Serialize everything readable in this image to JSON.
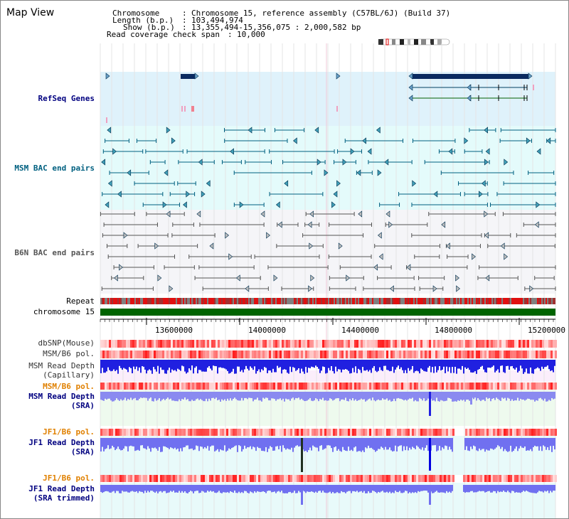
{
  "window": {
    "title": "Map View"
  },
  "header": {
    "chromosome_label": "Chromosome",
    "chromosome_value": "Chromosome 15, reference assembly (C57BL/6J) (Build 37)",
    "length_label": "Length (b.p.)",
    "length_value": "103,494,974",
    "show_label": "Show (b.p.)",
    "show_value": "13,355,494-15,356,075 : 2,000,582 bp",
    "span_label": "Read coverage check span",
    "span_value": "10,000"
  },
  "tracks": {
    "refseq": "RefSeq Genes",
    "msm_bac": "MSM BAC end pairs",
    "b6n_bac": "B6N BAC end pairs",
    "repeat": "Repeat",
    "chromosome": "chromosome 15",
    "dbsnp": "dbSNP(Mouse)",
    "msm_b6_pol": "MSM/B6 pol.",
    "msm_depth_cap_1": "MSM Read Depth",
    "msm_depth_cap_2": "(Capillary)",
    "msm_b6_pol2": "MSM/B6 pol.",
    "msm_depth_sra_1": "MSM Read Depth",
    "msm_depth_sra_2": "(SRA)",
    "jf1_pol": "JF1/B6 pol.",
    "jf1_depth_sra_1": "JF1 Read Depth",
    "jf1_depth_sra_2": "(SRA)",
    "jf1_pol2": "JF1/B6 pol.",
    "jf1_depth_trim_1": "JF1 Read Depth",
    "jf1_depth_trim_2": "(SRA trimmed)"
  },
  "axis": {
    "ticks": [
      "13600000",
      "14000000",
      "14400000",
      "14800000",
      "15200000"
    ]
  },
  "colors": {
    "refseq_label": "#000080",
    "msm_bac_label": "#006080",
    "orange_label": "#e08000",
    "blue_label": "#000080",
    "chromosome_bar": "#006400",
    "refseq_bg": "#dff2fb",
    "msm_bac_bg": "#e4fbfb",
    "b6n_bg": "#f5f5f8"
  }
}
